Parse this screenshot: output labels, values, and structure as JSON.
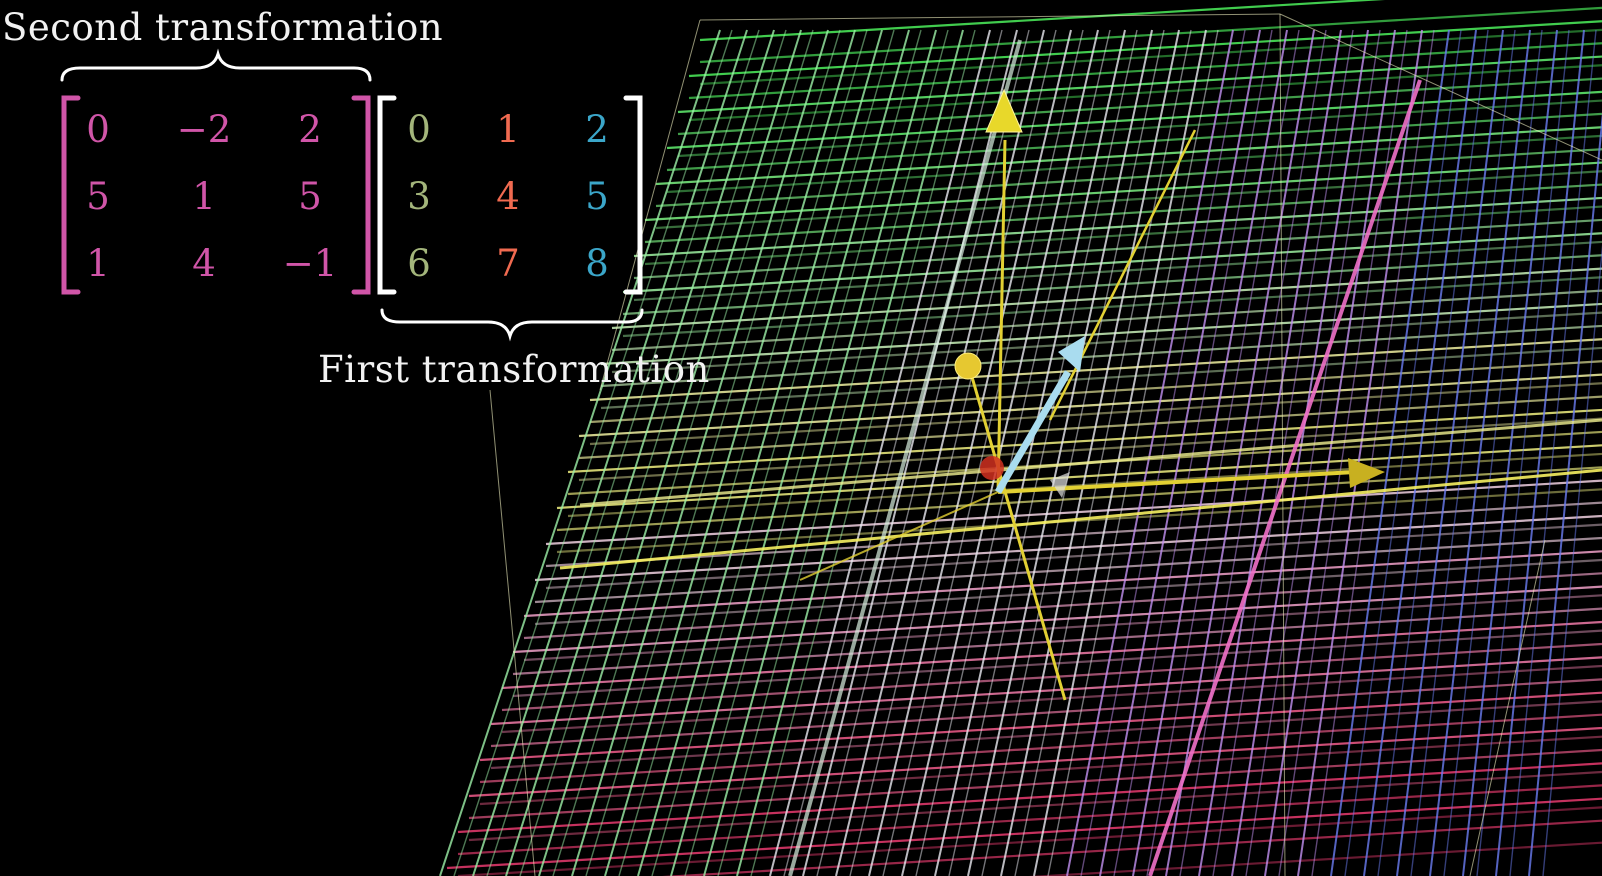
{
  "colors": {
    "background": "#000000",
    "second_matrix": "#d055a8",
    "first_col_1": "#a3b57b",
    "first_col_2": "#f06a50",
    "first_col_3": "#3ba6c9",
    "brace": "#ffffff",
    "axis": "#e2d033",
    "vector": "#a9dcef"
  },
  "second_transformation": {
    "label": "Second transformation",
    "matrix": [
      [
        "0",
        "−2",
        "2"
      ],
      [
        "5",
        "1",
        "5"
      ],
      [
        "1",
        "4",
        "−1"
      ]
    ]
  },
  "first_transformation": {
    "label": "First transformation",
    "matrix": [
      [
        "0",
        "1",
        "2"
      ],
      [
        "3",
        "4",
        "5"
      ],
      [
        "6",
        "7",
        "8"
      ]
    ]
  },
  "scene": {
    "icons": [
      "yellow-cone-arrow-icon",
      "light-blue-vector-arrow-icon",
      "yellow-sphere-icon",
      "red-sphere-icon"
    ]
  }
}
